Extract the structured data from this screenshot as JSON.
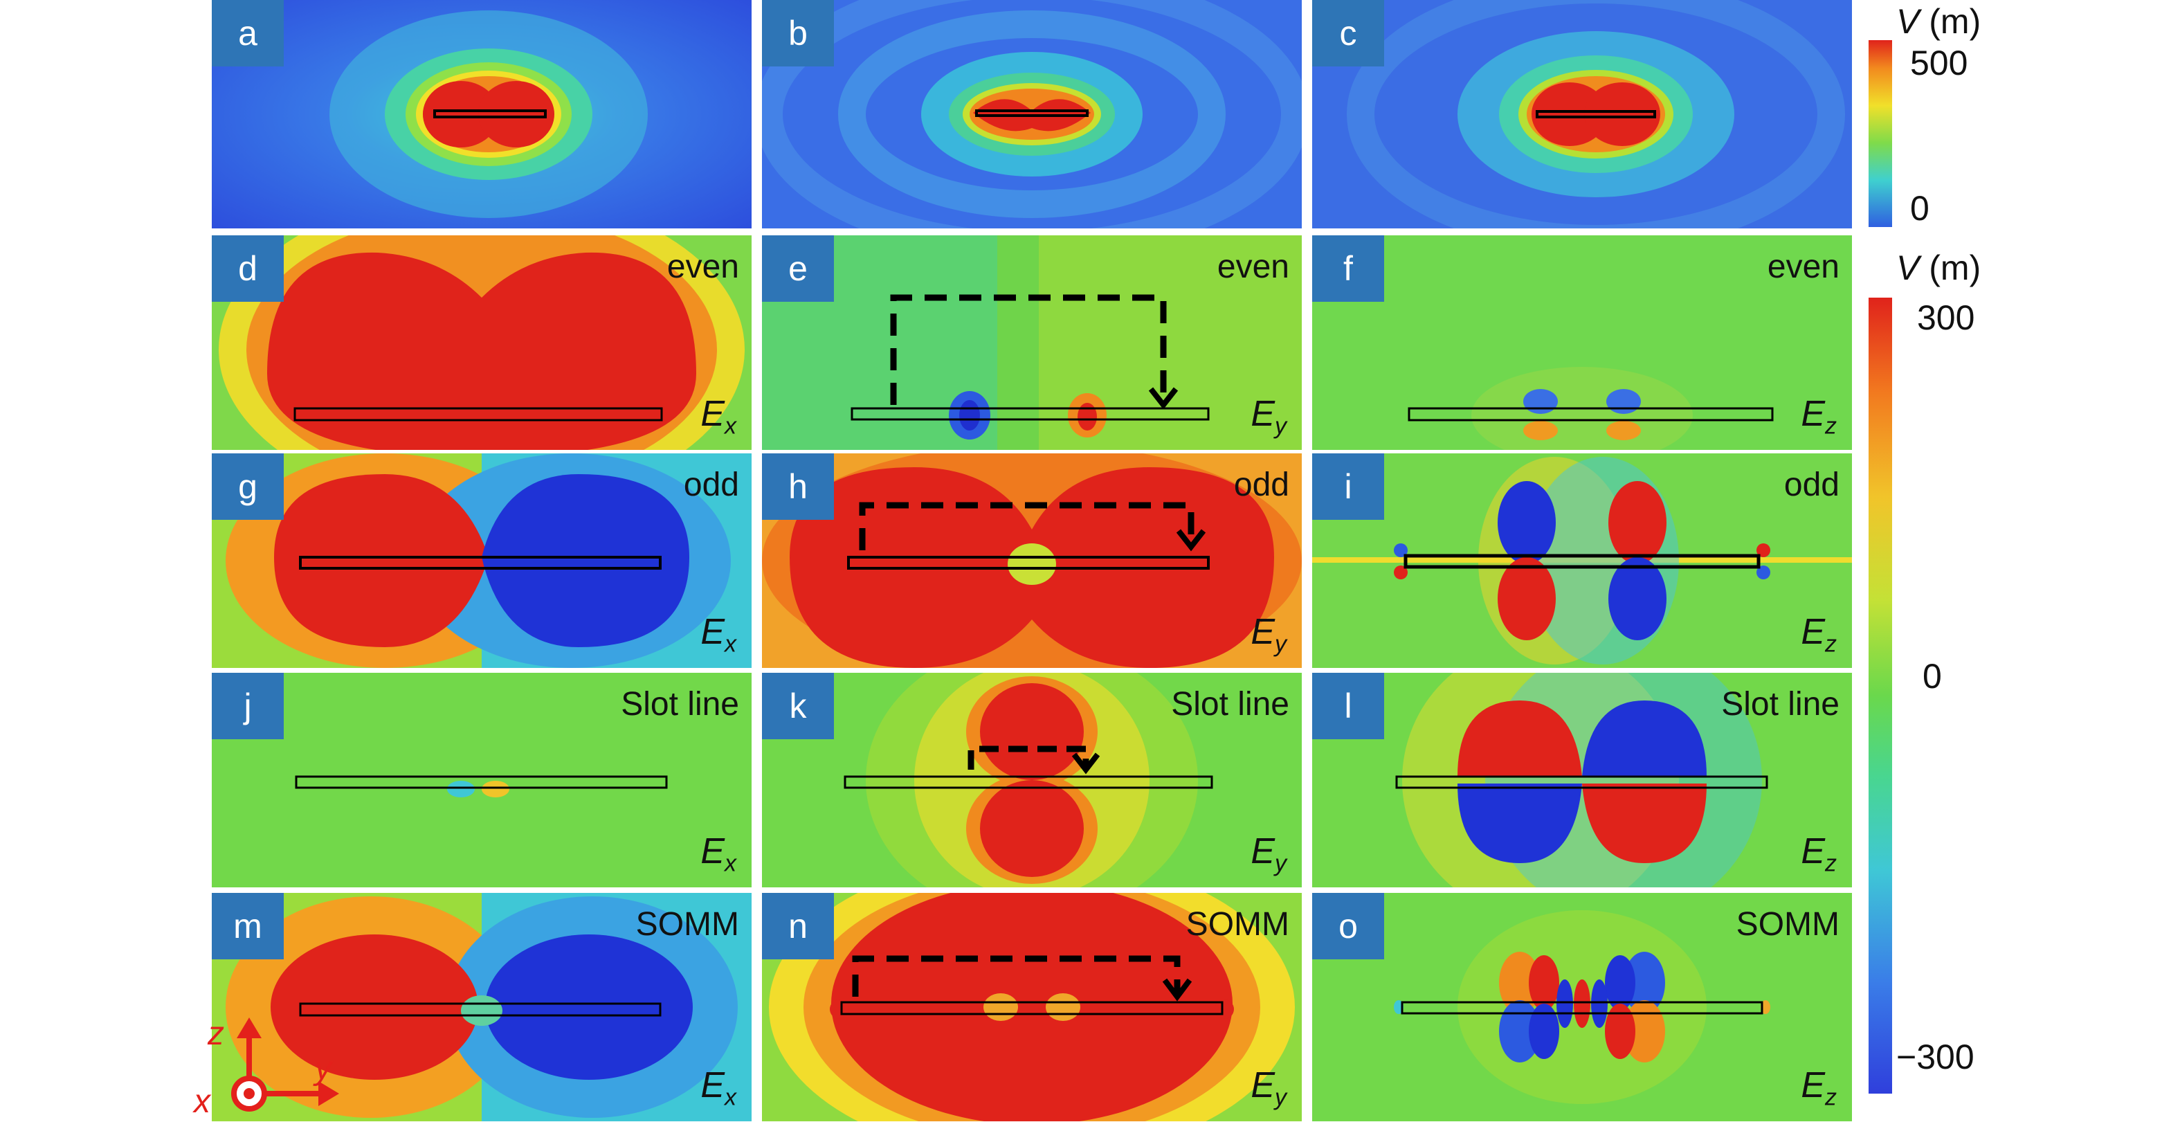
{
  "top_colorbar": {
    "symbol": "V",
    "unit": "(m)",
    "max_label": "500",
    "min_label": "0"
  },
  "bottom_colorbar": {
    "symbol": "V",
    "unit": "(m)",
    "max_label": "300",
    "mid_label": "0",
    "min_label": "−300"
  },
  "panels": [
    {
      "label": "a",
      "mode": "",
      "comp": "",
      "sub": ""
    },
    {
      "label": "b",
      "mode": "",
      "comp": "",
      "sub": ""
    },
    {
      "label": "c",
      "mode": "",
      "comp": "",
      "sub": ""
    },
    {
      "label": "d",
      "mode": "even",
      "comp": "E",
      "sub": "x"
    },
    {
      "label": "e",
      "mode": "even",
      "comp": "E",
      "sub": "y"
    },
    {
      "label": "f",
      "mode": "even",
      "comp": "E",
      "sub": "z"
    },
    {
      "label": "g",
      "mode": "odd",
      "comp": "E",
      "sub": "x"
    },
    {
      "label": "h",
      "mode": "odd",
      "comp": "E",
      "sub": "y"
    },
    {
      "label": "i",
      "mode": "odd",
      "comp": "E",
      "sub": "z"
    },
    {
      "label": "j",
      "mode": "Slot line",
      "comp": "E",
      "sub": "x"
    },
    {
      "label": "k",
      "mode": "Slot line",
      "comp": "E",
      "sub": "y"
    },
    {
      "label": "l",
      "mode": "Slot line",
      "comp": "E",
      "sub": "z"
    },
    {
      "label": "m",
      "mode": "SOMM",
      "comp": "E",
      "sub": "x"
    },
    {
      "label": "n",
      "mode": "SOMM",
      "comp": "E",
      "sub": "y"
    },
    {
      "label": "o",
      "mode": "SOMM",
      "comp": "E",
      "sub": "z"
    }
  ],
  "axes": {
    "z": "z",
    "y": "y",
    "x": "x",
    "color": "#e3201b"
  }
}
